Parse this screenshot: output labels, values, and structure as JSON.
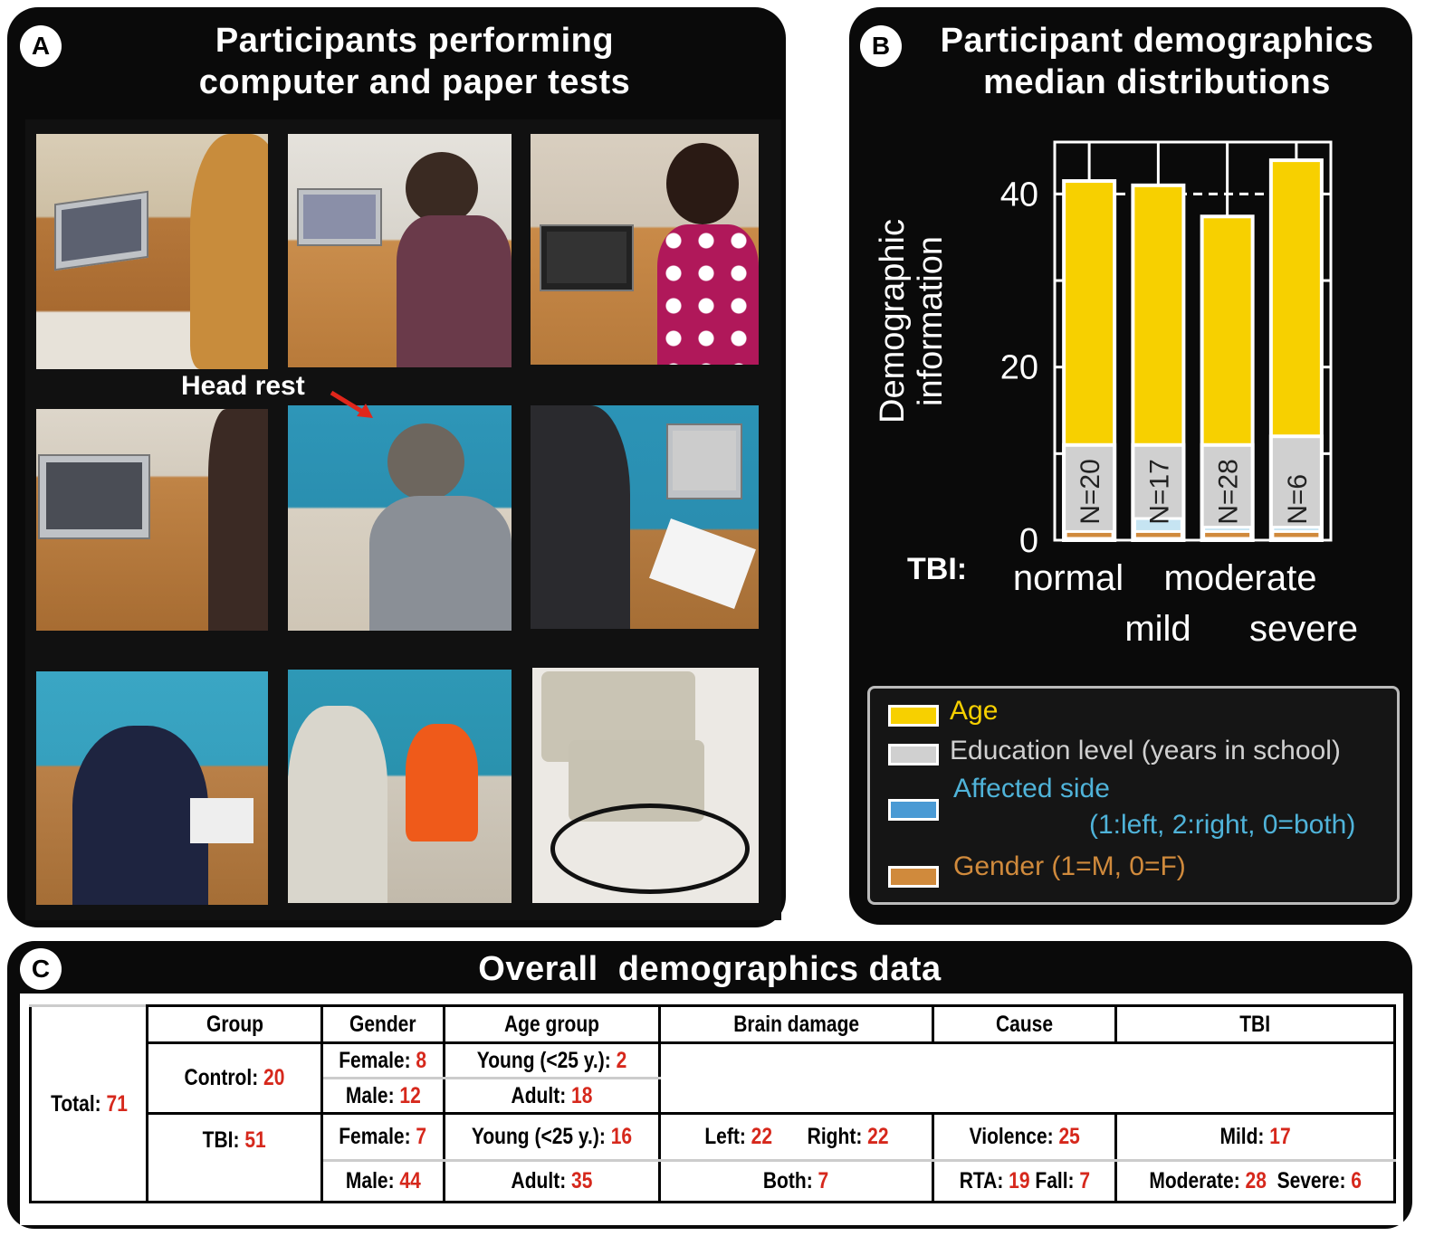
{
  "panel_a": {
    "letter": "A",
    "title_line1": "Participants performing",
    "title_line2": "computer and paper tests",
    "annotation": "Head rest",
    "arrow_color": "#e0261b",
    "photos": [
      "laptop-test-1",
      "laptop-test-2",
      "laptop-test-3",
      "laptop-test-4",
      "paper-test-headrest-1",
      "paper-test-headrest-2",
      "paper-test-5",
      "participants-in-room",
      "response-keypads"
    ]
  },
  "panel_b": {
    "letter": "B",
    "title_line1": "Participant demographics",
    "title_line2": "median distributions"
  },
  "chart_data": {
    "type": "bar",
    "categories": [
      "normal",
      "mild",
      "moderate",
      "severe"
    ],
    "category_axis_label": "TBI:",
    "ylabel_line1": "Demographic",
    "ylabel_line2": "information",
    "ylim": [
      0,
      46
    ],
    "yticks": [
      0,
      20,
      40
    ],
    "minor_ticks": [
      10,
      30
    ],
    "grid": "dashed line at 40",
    "legend_placement": "bottom",
    "n_labels": [
      "N=20",
      "N=17",
      "N=28",
      "N=6"
    ],
    "series": [
      {
        "name": "Age",
        "color": "#f7d000",
        "values": [
          41.5,
          41,
          37.4,
          43.9
        ]
      },
      {
        "name": "Education level (years in school)",
        "color": "#d0d0d0",
        "values": [
          11,
          11,
          11,
          12
        ]
      },
      {
        "name": "Affected side",
        "note": "(1:left, 2:right, 0=both)",
        "color": "#4a9ad4",
        "bar_color": "#c6e4f2",
        "text_color": "#4fb3d9",
        "values": [
          0,
          2.5,
          1.5,
          1.5
        ]
      },
      {
        "name": "Gender (1=M, 0=F)",
        "color": "#d08a3c",
        "values": [
          1,
          1,
          1,
          1
        ]
      }
    ]
  },
  "panel_c": {
    "letter": "C",
    "title": "Overall  demographics data",
    "headers": [
      "Group",
      "Gender",
      "Age group",
      "Brain damage",
      "Cause",
      "TBI"
    ],
    "total": {
      "label": "Total: ",
      "value": "71"
    },
    "control": {
      "group": {
        "label": "Control: ",
        "value": "20"
      },
      "female": {
        "label": "Female: ",
        "value": "8"
      },
      "male": {
        "label": "Male: ",
        "value": "12"
      },
      "young": {
        "label": "Young (<25 y.): ",
        "value": "2"
      },
      "adult": {
        "label": "Adult: ",
        "value": "18"
      }
    },
    "tbi": {
      "group": {
        "label": "TBI: ",
        "value": "51"
      },
      "female": {
        "label": "Female: ",
        "value": "7"
      },
      "male": {
        "label": "Male: ",
        "value": "44"
      },
      "young": {
        "label": "Young (<25 y.): ",
        "value": "16"
      },
      "adult": {
        "label": "Adult: ",
        "value": "35"
      },
      "left": {
        "label": "Left: ",
        "value": "22"
      },
      "right": {
        "label": "Right: ",
        "value": "22"
      },
      "both": {
        "label": "Both: ",
        "value": "7"
      },
      "violence": {
        "label": "Violence: ",
        "value": "25"
      },
      "rta": {
        "label": "RTA: ",
        "value": "19"
      },
      "fall": {
        "label": "Fall: ",
        "value": "7"
      },
      "mild": {
        "label": "Mild: ",
        "value": "17"
      },
      "moderate": {
        "label": "Moderate: ",
        "value": "28"
      },
      "severe": {
        "label": "Severe: ",
        "value": "6"
      }
    }
  }
}
